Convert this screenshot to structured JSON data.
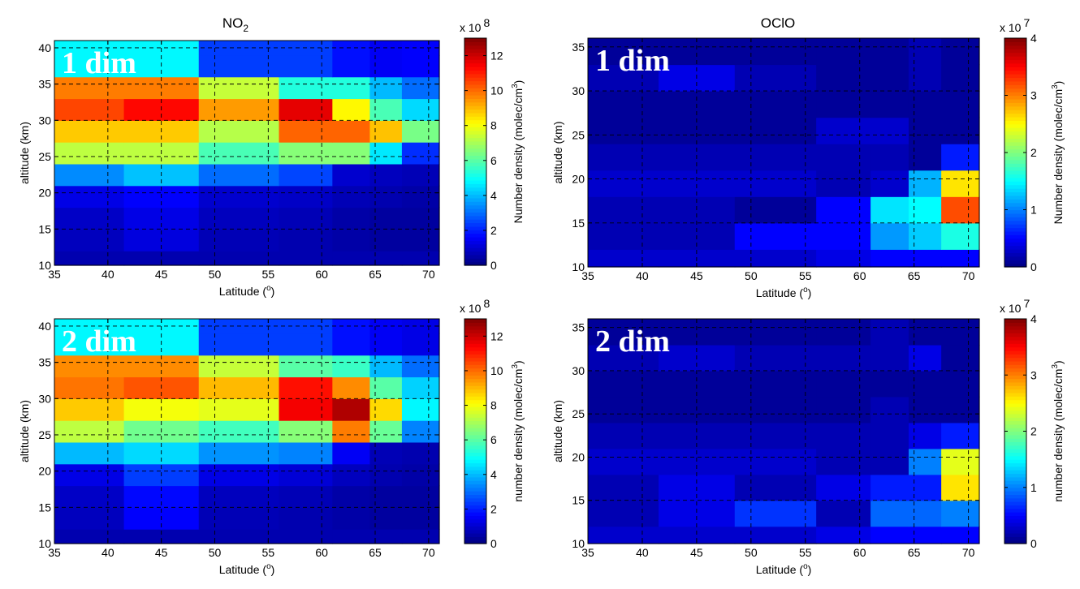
{
  "figure": {
    "panel_titles": {
      "no2": "NO",
      "no2_sub": "2",
      "oclo": "OClO"
    }
  },
  "chart_data": [
    {
      "type": "heatmap",
      "title": "NO2",
      "overlay_label": "1 dim",
      "xlabel": "Latitude (o)",
      "xlabel_main": "Latitude (",
      "xlabel_sup": "o",
      "xlabel_end": ")",
      "ylabel": "altitude (km)",
      "xlim": [
        35,
        71
      ],
      "ylim": [
        10,
        41
      ],
      "xticks": [
        35,
        40,
        45,
        50,
        55,
        60,
        65,
        70
      ],
      "yticks": [
        10,
        15,
        20,
        25,
        30,
        35,
        40
      ],
      "x_edges": [
        35,
        41.5,
        48.5,
        56,
        61,
        64.5,
        67.5,
        71
      ],
      "y_edges": [
        10,
        12,
        15,
        18,
        21,
        24,
        27,
        30,
        33,
        36,
        39,
        41
      ],
      "z": [
        [
          0.6,
          0.6,
          0.6,
          0.6,
          0.6,
          0.6,
          0.6
        ],
        [
          0.8,
          1.2,
          0.7,
          0.6,
          0.5,
          0.4,
          0.4
        ],
        [
          0.9,
          1.3,
          0.8,
          0.7,
          0.5,
          0.4,
          0.4
        ],
        [
          1.3,
          1.6,
          1.0,
          0.9,
          0.7,
          0.6,
          0.5
        ],
        [
          3.4,
          4.1,
          3.0,
          2.5,
          1.0,
          0.8,
          0.7
        ],
        [
          7.3,
          7.3,
          5.8,
          6.6,
          6.6,
          4.6,
          2.2
        ],
        [
          8.8,
          8.8,
          7.2,
          10.1,
          10.1,
          8.9,
          6.4
        ],
        [
          10.5,
          11.3,
          9.4,
          11.7,
          8.2,
          5.8,
          4.4
        ],
        [
          9.8,
          9.8,
          7.4,
          5.3,
          5.3,
          4.0,
          3.0
        ],
        [
          4.8,
          4.8,
          2.4,
          2.4,
          1.8,
          1.5,
          1.6
        ],
        [
          4.8,
          4.8,
          2.4,
          2.4,
          1.8,
          1.5,
          1.6
        ]
      ],
      "colorbar": {
        "ylabel": "Number density (molec/cm3)",
        "ylabel_main": "Number density (molec/cm",
        "ylabel_sup": "3",
        "ylabel_end": ")",
        "range": [
          0,
          13
        ],
        "ticks": [
          0,
          2,
          4,
          6,
          8,
          10,
          12
        ],
        "multiplier": "x 10",
        "exponent": "8"
      }
    },
    {
      "type": "heatmap",
      "title": "OClO",
      "overlay_label": "1 dim",
      "xlabel": "Latitude (o)",
      "xlabel_main": "Latitude (",
      "xlabel_sup": "o",
      "xlabel_end": ")",
      "ylabel": "altitude (km)",
      "xlim": [
        35,
        71
      ],
      "ylim": [
        10,
        36
      ],
      "xticks": [
        35,
        40,
        45,
        50,
        55,
        60,
        65,
        70
      ],
      "yticks": [
        10,
        15,
        20,
        25,
        30,
        35
      ],
      "x_edges": [
        35,
        41.5,
        48.5,
        56,
        61,
        64.5,
        67.5,
        71
      ],
      "y_edges": [
        10,
        12,
        15,
        18,
        21,
        24,
        27,
        30,
        33,
        36
      ],
      "z": [
        [
          0.3,
          0.3,
          0.3,
          0.4,
          0.5,
          0.5,
          0.5
        ],
        [
          0.2,
          0.2,
          0.5,
          0.5,
          1.1,
          1.3,
          1.6
        ],
        [
          0.2,
          0.2,
          0.1,
          0.5,
          1.4,
          1.5,
          3.2
        ],
        [
          0.3,
          0.3,
          0.3,
          0.2,
          0.3,
          1.2,
          2.6
        ],
        [
          0.2,
          0.2,
          0.2,
          0.2,
          0.2,
          0.1,
          0.6
        ],
        [
          0.1,
          0.1,
          0.1,
          0.3,
          0.3,
          0.1,
          0.1
        ],
        [
          0.1,
          0.1,
          0.1,
          0.1,
          0.1,
          0.1,
          0.1
        ],
        [
          0.2,
          0.4,
          0.2,
          0.1,
          0.1,
          0.2,
          0.1
        ],
        [
          0.1,
          0.1,
          0.1,
          0.1,
          0.1,
          0.2,
          0.1
        ]
      ],
      "colorbar": {
        "ylabel": "Number density (molec/cm3)",
        "ylabel_main": "Number density (molec/cm",
        "ylabel_sup": "3",
        "ylabel_end": ")",
        "range": [
          0,
          4
        ],
        "ticks": [
          0,
          1,
          2,
          3,
          4
        ],
        "multiplier": "x 10",
        "exponent": "7"
      }
    },
    {
      "type": "heatmap",
      "title": "",
      "overlay_label": "2 dim",
      "xlabel": "Latitude (o)",
      "xlabel_main": "Latitude (",
      "xlabel_sup": "o",
      "xlabel_end": ")",
      "ylabel": "altitude (km)",
      "xlim": [
        35,
        71
      ],
      "ylim": [
        10,
        41
      ],
      "xticks": [
        35,
        40,
        45,
        50,
        55,
        60,
        65,
        70
      ],
      "yticks": [
        10,
        15,
        20,
        25,
        30,
        35,
        40
      ],
      "x_edges": [
        35,
        41.5,
        48.5,
        56,
        61,
        64.5,
        67.5,
        71
      ],
      "y_edges": [
        10,
        12,
        15,
        18,
        21,
        24,
        27,
        30,
        33,
        36,
        39,
        41
      ],
      "z": [
        [
          0.6,
          0.6,
          0.6,
          0.6,
          0.6,
          0.6,
          0.6
        ],
        [
          0.8,
          1.6,
          0.7,
          0.6,
          0.5,
          0.4,
          0.4
        ],
        [
          0.9,
          1.7,
          0.8,
          0.7,
          0.5,
          0.4,
          0.4
        ],
        [
          1.3,
          2.4,
          1.3,
          1.1,
          0.8,
          0.6,
          0.5
        ],
        [
          4.0,
          4.4,
          3.5,
          3.3,
          1.5,
          0.7,
          0.6
        ],
        [
          7.3,
          6.3,
          5.7,
          6.6,
          9.8,
          6.2,
          3.3
        ],
        [
          8.8,
          8.0,
          7.8,
          11.5,
          12.4,
          8.6,
          4.8
        ],
        [
          9.9,
          10.3,
          9.0,
          11.2,
          9.6,
          6.0,
          4.3
        ],
        [
          9.6,
          9.6,
          7.4,
          6.0,
          5.6,
          4.0,
          3.0
        ],
        [
          4.8,
          4.8,
          2.4,
          2.4,
          1.8,
          1.5,
          1.3
        ],
        [
          4.8,
          4.8,
          2.4,
          2.4,
          1.8,
          1.5,
          1.3
        ]
      ],
      "colorbar": {
        "ylabel": "number density (molec/cm3)",
        "ylabel_main": "number density (molec/cm",
        "ylabel_sup": "3",
        "ylabel_end": ")",
        "range": [
          0,
          13
        ],
        "ticks": [
          0,
          2,
          4,
          6,
          8,
          10,
          12
        ],
        "multiplier": "x 10",
        "exponent": "8"
      }
    },
    {
      "type": "heatmap",
      "title": "",
      "overlay_label": "2 dim",
      "xlabel": "Latitude (o)",
      "xlabel_main": "Latitude (",
      "xlabel_sup": "o",
      "xlabel_end": ")",
      "ylabel": "altitude (km)",
      "xlim": [
        35,
        71
      ],
      "ylim": [
        10,
        36
      ],
      "xticks": [
        35,
        40,
        45,
        50,
        55,
        60,
        65,
        70
      ],
      "yticks": [
        10,
        15,
        20,
        25,
        30,
        35
      ],
      "x_edges": [
        35,
        41.5,
        48.5,
        56,
        61,
        64.5,
        67.5,
        71
      ],
      "y_edges": [
        10,
        12,
        15,
        18,
        21,
        24,
        27,
        30,
        33,
        36
      ],
      "z": [
        [
          0.3,
          0.3,
          0.3,
          0.4,
          0.5,
          0.5,
          0.5
        ],
        [
          0.2,
          0.4,
          0.7,
          0.2,
          0.9,
          0.9,
          1.0
        ],
        [
          0.2,
          0.4,
          0.2,
          0.4,
          0.6,
          0.6,
          2.6
        ],
        [
          0.3,
          0.3,
          0.3,
          0.2,
          0.2,
          1.0,
          2.4
        ],
        [
          0.2,
          0.2,
          0.2,
          0.2,
          0.2,
          0.4,
          0.6
        ],
        [
          0.1,
          0.1,
          0.1,
          0.1,
          0.2,
          0.1,
          0.1
        ],
        [
          0.1,
          0.1,
          0.1,
          0.1,
          0.1,
          0.1,
          0.1
        ],
        [
          0.2,
          0.3,
          0.2,
          0.2,
          0.2,
          0.4,
          0.1
        ],
        [
          0.1,
          0.1,
          0.1,
          0.1,
          0.2,
          0.1,
          0.1
        ]
      ],
      "colorbar": {
        "ylabel": "number density (molec/cm3)",
        "ylabel_main": "number density (molec/cm",
        "ylabel_sup": "3",
        "ylabel_end": ")",
        "range": [
          0,
          4
        ],
        "ticks": [
          0,
          1,
          2,
          3,
          4
        ],
        "multiplier": "x 10",
        "exponent": "7"
      }
    }
  ]
}
